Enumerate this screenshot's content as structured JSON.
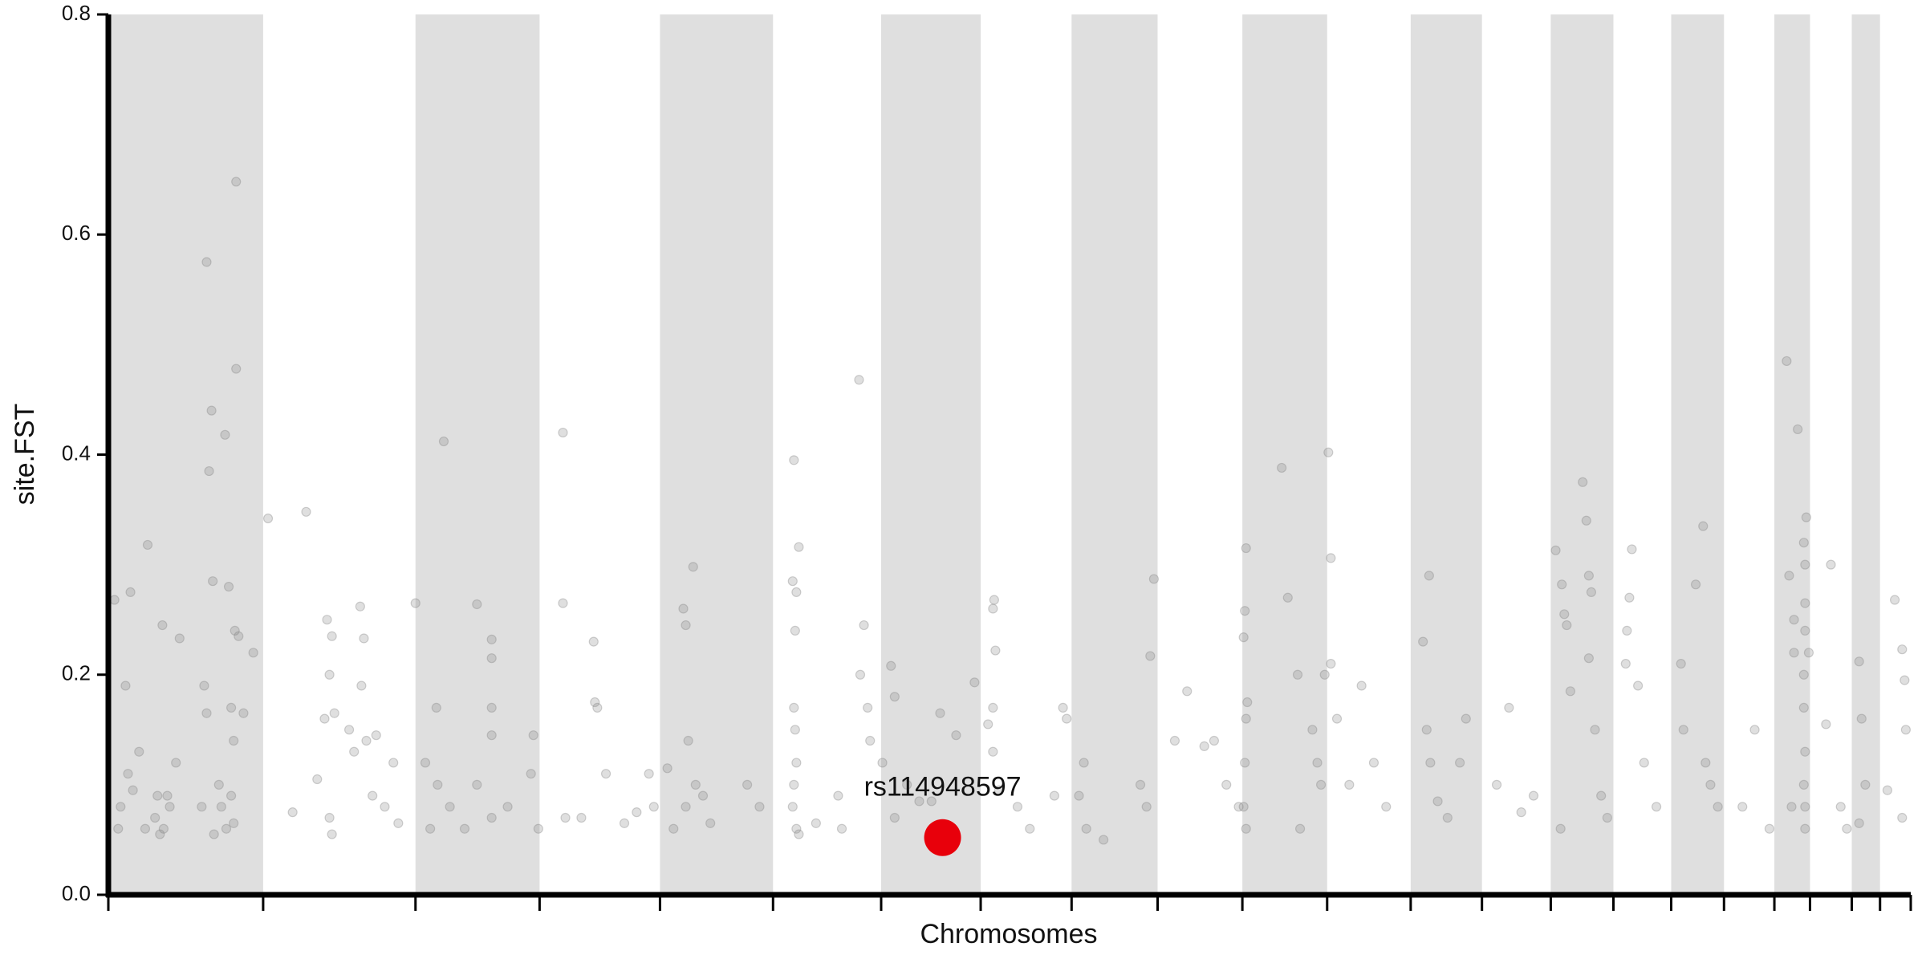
{
  "chart_data": {
    "type": "scatter",
    "xlabel": "Chromosomes",
    "ylabel": "site.FST",
    "xlim": [
      0,
      1467
    ],
    "ylim": [
      0,
      0.8
    ],
    "yticks": [
      {
        "value": 0,
        "label": "0.0"
      },
      0.2,
      0.4,
      0.6,
      0.8
    ],
    "chromosome_bounds": [
      0,
      126,
      250,
      351,
      449,
      541,
      629,
      710,
      784,
      854,
      923,
      992,
      1060,
      1118,
      1174,
      1225,
      1272,
      1315,
      1356,
      1385,
      1419,
      1442,
      1467
    ],
    "band_color": "#dfdfdf",
    "series": [
      {
        "color": "#808080",
        "opacity": 0.25,
        "x": [
          5,
          8,
          14,
          16,
          18,
          25,
          32,
          38,
          44,
          50,
          58,
          40,
          20,
          10,
          30,
          45,
          55,
          80,
          84,
          82,
          85,
          95,
          98,
          104,
          104,
          103,
          106,
          100,
          102,
          78,
          80,
          90,
          92,
          102,
          100,
          110,
          118,
          76,
          86,
          96,
          42,
          48,
          130,
          161,
          150,
          170,
          178,
          180,
          182,
          184,
          176,
          180,
          182,
          205,
          208,
          206,
          210,
          218,
          215,
          225,
          232,
          236,
          196,
          200,
          250,
          258,
          267,
          273,
          268,
          262,
          278,
          300,
          312,
          312,
          312,
          312,
          312,
          300,
          290,
          325,
          346,
          344,
          350,
          370,
          370,
          372,
          385,
          395,
          396,
          398,
          405,
          420,
          430,
          444,
          440,
          455,
          468,
          470,
          476,
          472,
          478,
          484,
          470,
          490,
          460,
          520,
          530,
          557,
          558,
          560,
          562,
          559,
          558,
          559,
          560,
          558,
          557,
          560,
          562,
          576,
          597,
          594,
          611,
          615,
          612,
          637,
          640,
          618,
          620,
          630,
          640,
          650,
          660,
          670,
          677,
          705,
          690,
          721,
          720,
          722,
          720,
          716,
          720,
          725,
          750,
          740,
          770,
          780,
          777,
          790,
          794,
          796,
          810,
          840,
          845,
          851,
          848,
          868,
          878,
          892,
          900,
          910,
          920,
          926,
          925,
          924,
          927,
          926,
          925,
          924,
          926,
          955,
          960,
          968,
          980,
          984,
          987,
          970,
          993,
          995,
          995,
          990,
          1000,
          1020,
          1010,
          1030,
          1040,
          1070,
          1075,
          1073,
          1076,
          1082,
          1100,
          1105,
          1090,
          1140,
          1130,
          1150,
          1160,
          1178,
          1183,
          1185,
          1187,
          1190,
          1200,
          1203,
          1205,
          1207,
          1205,
          1210,
          1215,
          1220,
          1182,
          1240,
          1238,
          1236,
          1235,
          1245,
          1250,
          1260,
          1280,
          1282,
          1292,
          1298,
          1300,
          1304,
          1310,
          1330,
          1340,
          1352,
          1366,
          1372,
          1375,
          1380,
          1382,
          1381,
          1381,
          1381,
          1380,
          1380,
          1381,
          1380,
          1381,
          1381,
          1368,
          1372,
          1384,
          1370,
          1402,
          1398,
          1410,
          1415,
          1425,
          1427,
          1430,
          1425,
          1448,
          1454,
          1460,
          1462,
          1463,
          1460
        ],
        "values": [
          0.268,
          0.06,
          0.19,
          0.11,
          0.275,
          0.13,
          0.318,
          0.07,
          0.245,
          0.08,
          0.233,
          0.09,
          0.095,
          0.08,
          0.06,
          0.06,
          0.12,
          0.575,
          0.44,
          0.385,
          0.285,
          0.418,
          0.28,
          0.648,
          0.478,
          0.24,
          0.235,
          0.17,
          0.14,
          0.19,
          0.165,
          0.1,
          0.08,
          0.065,
          0.09,
          0.165,
          0.22,
          0.08,
          0.055,
          0.06,
          0.055,
          0.09,
          0.342,
          0.348,
          0.075,
          0.105,
          0.25,
          0.2,
          0.235,
          0.165,
          0.16,
          0.07,
          0.055,
          0.262,
          0.233,
          0.19,
          0.14,
          0.145,
          0.09,
          0.08,
          0.12,
          0.065,
          0.15,
          0.13,
          0.265,
          0.12,
          0.17,
          0.412,
          0.1,
          0.06,
          0.08,
          0.264,
          0.232,
          0.215,
          0.17,
          0.145,
          0.07,
          0.1,
          0.06,
          0.08,
          0.145,
          0.11,
          0.06,
          0.42,
          0.265,
          0.07,
          0.07,
          0.23,
          0.175,
          0.17,
          0.11,
          0.065,
          0.075,
          0.08,
          0.11,
          0.115,
          0.26,
          0.245,
          0.298,
          0.14,
          0.1,
          0.09,
          0.08,
          0.065,
          0.06,
          0.1,
          0.08,
          0.285,
          0.395,
          0.275,
          0.316,
          0.24,
          0.17,
          0.15,
          0.12,
          0.1,
          0.08,
          0.06,
          0.055,
          0.065,
          0.06,
          0.09,
          0.468,
          0.245,
          0.2,
          0.208,
          0.18,
          0.17,
          0.14,
          0.12,
          0.07,
          0.1,
          0.085,
          0.085,
          0.165,
          0.193,
          0.145,
          0.268,
          0.26,
          0.222,
          0.17,
          0.155,
          0.13,
          0.095,
          0.06,
          0.08,
          0.09,
          0.16,
          0.17,
          0.09,
          0.12,
          0.06,
          0.05,
          0.1,
          0.08,
          0.287,
          0.217,
          0.14,
          0.185,
          0.135,
          0.14,
          0.1,
          0.08,
          0.315,
          0.258,
          0.234,
          0.175,
          0.16,
          0.12,
          0.08,
          0.06,
          0.388,
          0.27,
          0.2,
          0.15,
          0.12,
          0.1,
          0.06,
          0.402,
          0.306,
          0.21,
          0.2,
          0.16,
          0.19,
          0.1,
          0.12,
          0.08,
          0.23,
          0.29,
          0.15,
          0.12,
          0.085,
          0.12,
          0.16,
          0.07,
          0.17,
          0.1,
          0.075,
          0.09,
          0.313,
          0.282,
          0.255,
          0.245,
          0.185,
          0.375,
          0.34,
          0.29,
          0.275,
          0.215,
          0.15,
          0.09,
          0.07,
          0.06,
          0.314,
          0.27,
          0.24,
          0.21,
          0.19,
          0.12,
          0.08,
          0.21,
          0.15,
          0.282,
          0.335,
          0.12,
          0.1,
          0.08,
          0.08,
          0.15,
          0.06,
          0.485,
          0.25,
          0.423,
          0.32,
          0.343,
          0.3,
          0.265,
          0.24,
          0.2,
          0.17,
          0.13,
          0.1,
          0.08,
          0.06,
          0.29,
          0.22,
          0.22,
          0.08,
          0.3,
          0.155,
          0.08,
          0.06,
          0.212,
          0.16,
          0.1,
          0.065,
          0.095,
          0.268,
          0.223,
          0.195,
          0.15,
          0.07
        ]
      }
    ],
    "annotation": {
      "label": "rs114948597",
      "x": 679,
      "y": 0.052,
      "color": "#e8000b"
    }
  }
}
